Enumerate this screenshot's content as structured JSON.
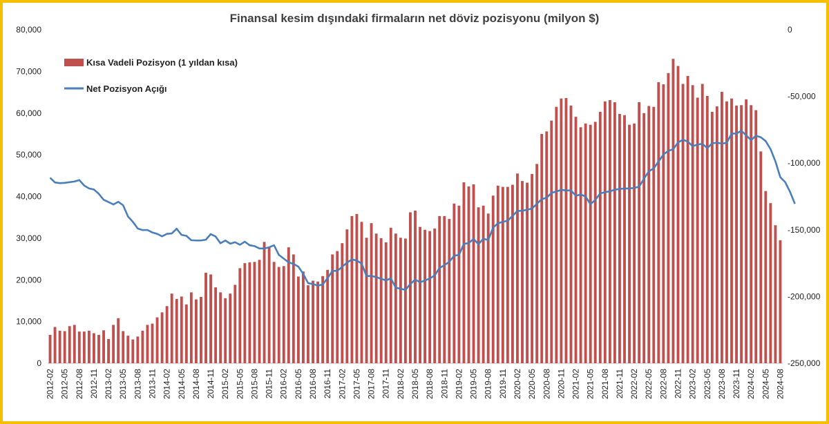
{
  "chart_data": {
    "type": "bar+line",
    "title": "Finansal kesim dışındaki firmaların net döviz pozisyonu (milyon $)",
    "left_axis": {
      "ylim": [
        0,
        80000
      ],
      "ticks": [
        0,
        10000,
        20000,
        30000,
        40000,
        50000,
        60000,
        70000,
        80000
      ],
      "tick_labels": [
        "0",
        "10,000",
        "20,000",
        "30,000",
        "40,000",
        "50,000",
        "60,000",
        "70,000",
        "80,000"
      ]
    },
    "right_axis": {
      "ylim": [
        -250000,
        0
      ],
      "ticks": [
        0,
        -50000,
        -100000,
        -150000,
        -200000,
        -250000
      ],
      "tick_labels": [
        "0",
        "-50,000",
        "-100,000",
        "-150,000",
        "-200,000",
        "-250,000"
      ]
    },
    "x_start": "2012-02",
    "x_tick_labels": [
      "2012-02",
      "2012-05",
      "2012-08",
      "2012-11",
      "2013-02",
      "2013-05",
      "2013-08",
      "2013-11",
      "2014-02",
      "2014-05",
      "2014-08",
      "2014-11",
      "2015-02",
      "2015-05",
      "2015-08",
      "2015-11",
      "2016-02",
      "2016-05",
      "2016-08",
      "2016-11",
      "2017-02",
      "2017-05",
      "2017-08",
      "2017-11",
      "2018-02",
      "2018-05",
      "2018-08",
      "2018-11",
      "2019-02",
      "2019-05",
      "2019-08",
      "2019-11",
      "2020-02",
      "2020-05",
      "2020-08",
      "2020-11",
      "2021-02",
      "2021-05",
      "2021-08",
      "2021-11",
      "2022-02",
      "2022-05",
      "2022-08",
      "2022-11",
      "2023-02",
      "2023-05",
      "2023-08",
      "2023-11",
      "2024-02",
      "2024-05",
      "2024-08"
    ],
    "legend_position": "top-left",
    "grid": false,
    "series": [
      {
        "name": "Kısa Vadeli Pozisyon (1 yıldan kısa)",
        "type": "bar",
        "axis": "left",
        "color": "#c0504d",
        "values": [
          6800,
          8700,
          7800,
          7700,
          8900,
          9200,
          7600,
          7600,
          7800,
          7200,
          6800,
          7900,
          5800,
          9200,
          10800,
          7700,
          6600,
          5700,
          6400,
          7800,
          9200,
          9500,
          11000,
          12200,
          13700,
          16700,
          15400,
          16000,
          14100,
          17000,
          15300,
          15900,
          21700,
          21300,
          18200,
          17000,
          15600,
          16700,
          18800,
          22800,
          24000,
          24200,
          24300,
          24800,
          29100,
          27800,
          24300,
          23100,
          23300,
          27800,
          26100,
          20800,
          22000,
          18700,
          19800,
          19600,
          20900,
          22400,
          26100,
          26900,
          28800,
          32100,
          35300,
          35800,
          33900,
          30100,
          33600,
          31100,
          30000,
          29000,
          32500,
          31100,
          30100,
          29900,
          36200,
          36600,
          32700,
          32000,
          31700,
          32300,
          35300,
          35300,
          34600,
          38300,
          37800,
          43400,
          42400,
          42900,
          37400,
          37800,
          35900,
          40200,
          42600,
          42300,
          42300,
          42800,
          45500,
          43700,
          43300,
          45400,
          47800,
          55000,
          55600,
          58200,
          61500,
          63500,
          63600,
          61800,
          59100,
          56600,
          57500,
          57200,
          57900,
          60300,
          62800,
          63100,
          62600,
          59800,
          59500,
          57200,
          57500,
          62600,
          60000,
          61700,
          61500,
          67400,
          66900,
          69600,
          73000,
          71300,
          67000,
          68900,
          66700,
          63700,
          67000,
          64100,
          60300,
          61600,
          65100,
          62800,
          63500,
          61800,
          61900,
          63300,
          61900,
          60700,
          50800,
          41300,
          38400,
          33100,
          29500
        ]
      },
      {
        "name": "Net Pozisyon Açığı",
        "type": "line",
        "axis": "right",
        "color": "#4a7ebb",
        "values": [
          -111000,
          -114500,
          -115000,
          -114800,
          -114300,
          -113800,
          -112700,
          -116800,
          -119000,
          -119800,
          -123000,
          -127500,
          -129200,
          -131000,
          -129000,
          -131600,
          -140000,
          -144000,
          -149000,
          -150200,
          -150100,
          -152000,
          -153000,
          -154900,
          -153000,
          -152700,
          -149200,
          -153800,
          -154500,
          -157800,
          -158000,
          -158000,
          -157400,
          -153200,
          -155000,
          -160100,
          -158000,
          -160400,
          -159300,
          -161200,
          -158900,
          -161600,
          -162200,
          -164000,
          -164000,
          -163100,
          -161600,
          -168800,
          -171600,
          -174400,
          -175500,
          -177600,
          -183000,
          -190000,
          -190600,
          -191800,
          -191000,
          -186200,
          -180800,
          -180800,
          -177700,
          -174600,
          -172200,
          -173000,
          -175300,
          -184600,
          -184600,
          -185400,
          -186700,
          -187900,
          -186400,
          -193300,
          -194200,
          -195000,
          -190600,
          -187300,
          -189300,
          -188000,
          -186500,
          -184200,
          -178600,
          -176500,
          -174000,
          -169400,
          -168800,
          -160500,
          -160000,
          -156800,
          -160800,
          -156700,
          -157700,
          -148400,
          -145100,
          -144000,
          -143200,
          -139600,
          -135900,
          -135700,
          -135000,
          -134000,
          -130500,
          -127000,
          -126000,
          -122300,
          -121300,
          -120000,
          -120500,
          -120500,
          -124500,
          -123500,
          -125000,
          -130800,
          -127600,
          -122800,
          -121700,
          -121200,
          -119900,
          -119400,
          -119000,
          -119000,
          -118600,
          -117700,
          -111600,
          -106200,
          -103900,
          -98800,
          -93500,
          -90800,
          -89600,
          -84500,
          -82500,
          -83900,
          -87300,
          -86100,
          -85500,
          -88800,
          -85200,
          -84700,
          -85400,
          -84800,
          -77900,
          -77800,
          -75800,
          -79200,
          -82800,
          -79500,
          -80600,
          -83500,
          -89500,
          -98700,
          -110500,
          -114200,
          -121500,
          -130500
        ]
      }
    ]
  }
}
